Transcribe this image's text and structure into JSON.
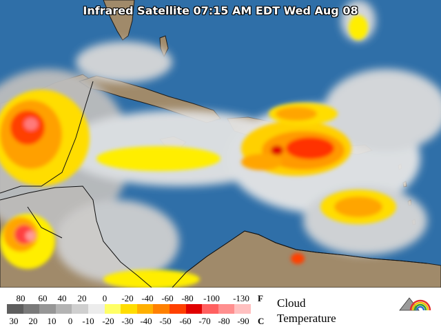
{
  "map": {
    "title": "Infrared Satellite 07:15 AM EDT Wed Aug 08",
    "colors": {
      "ocean": "#2f6fa8",
      "land": "#a08a6a",
      "cloud_light": "#e6e6e6",
      "cloud_gray": "#bdbdbd",
      "yellow": "#ffee00",
      "orange": "#ffa500",
      "red": "#ff3300",
      "pink": "#ff8a8a"
    }
  },
  "legend": {
    "fahrenheit_ticks": [
      "80",
      "60",
      "40",
      "20",
      "0",
      "-20",
      "-40",
      "-60",
      "-80",
      "-100",
      "-130"
    ],
    "fahrenheit_unit": "F",
    "celsius_ticks": [
      "30",
      "20",
      "10",
      "0",
      "-10",
      "-20",
      "-30",
      "-40",
      "-50",
      "-60",
      "-70",
      "-80",
      "-90"
    ],
    "celsius_unit": "C",
    "caption_line1": "Cloud",
    "caption_line2": "Temperature",
    "scale_colors": [
      "#5e5e5e",
      "#7a7a7a",
      "#969696",
      "#b3b3b3",
      "#cfcfcf",
      "#ececec",
      "#ffff66",
      "#ffdd00",
      "#ffb000",
      "#ff8000",
      "#ff4000",
      "#e00000",
      "#ff6060",
      "#ff8f8f",
      "#ffc0c0"
    ]
  }
}
